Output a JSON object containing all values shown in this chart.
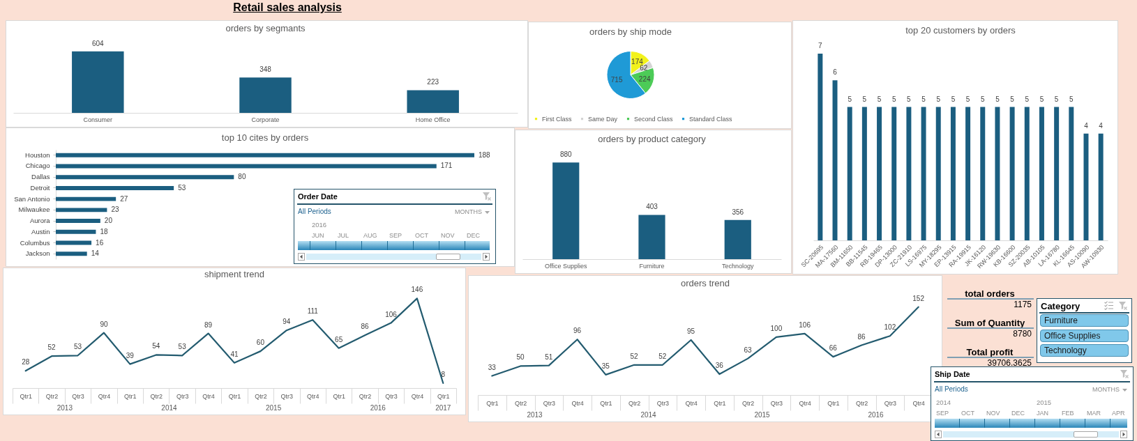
{
  "chart_data": [
    {
      "type": "other",
      "title": "Retail sales analysis"
    },
    {
      "type": "bar",
      "title": "orders by segmants",
      "categories": [
        "Consumer",
        "Corporate",
        "Home Office"
      ],
      "values": [
        604,
        348,
        223
      ],
      "color": "#1b5e80",
      "data_labels": true,
      "tick_labels": "x"
    },
    {
      "type": "pie",
      "title": "orders by ship mode",
      "categories": [
        "First Class",
        "Same Day",
        "Second Class",
        "Standard Class"
      ],
      "values": [
        174,
        62,
        224,
        715
      ],
      "colors": [
        "#f2f21c",
        "#d4d4d4",
        "#4ccb57",
        "#1f9ad6"
      ],
      "data_labels": true,
      "legend": "bottom"
    },
    {
      "type": "bar",
      "title": "top 20 customers by orders",
      "categories": [
        "SC-20695",
        "MA-17560",
        "BM-11650",
        "BB-11545",
        "RB-19465",
        "DP-13000",
        "ZC-21910",
        "LS-16975",
        "MY-18295",
        "EP-13915",
        "RA-19915",
        "JK-16120",
        "RW-19630",
        "KB-16600",
        "SZ-20035",
        "AB-10105",
        "LA-16780",
        "KL-16645",
        "AS-10090",
        "AW-10930"
      ],
      "values": [
        7,
        6,
        5,
        5,
        5,
        5,
        5,
        5,
        5,
        5,
        5,
        5,
        5,
        5,
        5,
        5,
        5,
        5,
        4,
        4
      ],
      "color": "#1b5e80",
      "data_labels": true,
      "tick_labels": "x"
    },
    {
      "type": "bar",
      "orientation": "horizontal",
      "title": "top 10 cites by orders",
      "categories": [
        "Houston",
        "Chicago",
        "Dallas",
        "Detroit",
        "San Antonio",
        "Milwaukee",
        "Aurora",
        "Austin",
        "Columbus",
        "Jackson"
      ],
      "values": [
        188,
        171,
        80,
        53,
        27,
        23,
        20,
        18,
        16,
        14
      ],
      "color": "#1b5e80",
      "data_labels": true,
      "tick_labels": "y"
    },
    {
      "type": "other",
      "title": "Order Date",
      "annotations": [
        "All Periods",
        "MONTHS",
        {
          "text": "2016",
          "x": "JUN"
        }
      ],
      "categories": [
        "JUN",
        "JUL",
        "AUG",
        "SEP",
        "OCT",
        "NOV",
        "DEC"
      ]
    },
    {
      "type": "bar",
      "title": "orders by product category",
      "categories": [
        "Office Supplies",
        "Furniture",
        "Technology"
      ],
      "values": [
        880,
        403,
        356
      ],
      "color": "#1b5e80",
      "data_labels": true,
      "tick_labels": "x"
    },
    {
      "type": "line",
      "title": "shipment trend",
      "categories": [
        "Qtr1",
        "Qtr2",
        "Qtr3",
        "Qtr4",
        "Qtr1",
        "Qtr2",
        "Qtr3",
        "Qtr4",
        "Qtr1",
        "Qtr2",
        "Qtr3",
        "Qtr4",
        "Qtr1",
        "Qtr2",
        "Qtr3",
        "Qtr4",
        "Qtr1"
      ],
      "values": [
        28,
        52,
        53,
        90,
        39,
        54,
        53,
        89,
        41,
        60,
        94,
        111,
        65,
        86,
        106,
        146,
        8
      ],
      "annotations": [
        "2013",
        "2014",
        "2015",
        "2016",
        "2017"
      ],
      "color": "#235b6f",
      "data_labels": true,
      "tick_labels": "x"
    },
    {
      "type": "line",
      "title": "orders trend",
      "categories": [
        "Qtr1",
        "Qtr2",
        "Qtr3",
        "Qtr4",
        "Qtr1",
        "Qtr2",
        "Qtr3",
        "Qtr4",
        "Qtr1",
        "Qtr2",
        "Qtr3",
        "Qtr4",
        "Qtr1",
        "Qtr2",
        "Qtr3",
        "Qtr4"
      ],
      "values": [
        33,
        50,
        51,
        96,
        35,
        52,
        52,
        95,
        36,
        63,
        100,
        106,
        66,
        86,
        102,
        152
      ],
      "annotations": [
        "2013",
        "2014",
        "2015",
        "2016"
      ],
      "color": "#235b6f",
      "data_labels": true,
      "tick_labels": "x"
    },
    {
      "type": "other",
      "categories": [
        "total orders",
        "Sum of Quantity",
        "Total profit"
      ],
      "values": [
        1175,
        8780,
        39706.3625
      ],
      "data_labels": true
    },
    {
      "type": "other",
      "title": "Category",
      "categories": [
        "Furniture",
        "Office Supplies",
        "Technology"
      ]
    },
    {
      "type": "other",
      "title": "Ship Date",
      "annotations": [
        "All Periods",
        "MONTHS",
        {
          "text": "2014",
          "x": "SEP"
        },
        {
          "text": "2015",
          "x": "JAN"
        }
      ],
      "categories": [
        "SEP",
        "OCT",
        "NOV",
        "DEC",
        "JAN",
        "FEB",
        "MAR",
        "APR"
      ]
    }
  ]
}
